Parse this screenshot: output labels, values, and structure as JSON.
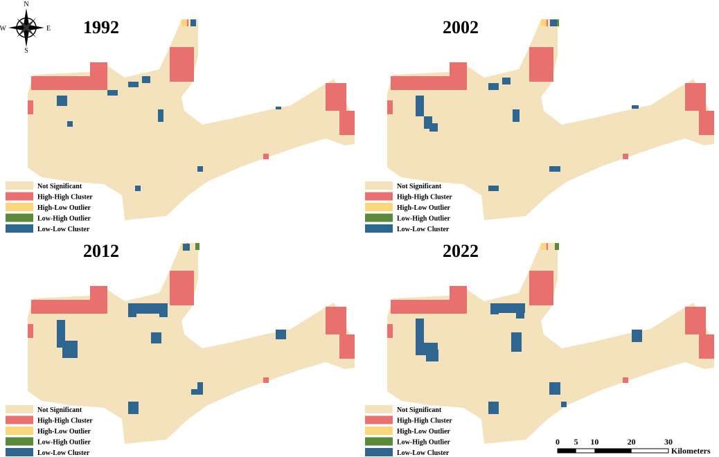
{
  "compass": {
    "north": "N",
    "south": "S",
    "east": "E",
    "west": "W"
  },
  "panels": [
    {
      "year": "1992"
    },
    {
      "year": "2002"
    },
    {
      "year": "2012"
    },
    {
      "year": "2022"
    }
  ],
  "legend": [
    {
      "label": "Not Significant",
      "color": "#f4e2bd"
    },
    {
      "label": "High-High Cluster",
      "color": "#e8706f"
    },
    {
      "label": "High-Low Outlier",
      "color": "#fbd67a"
    },
    {
      "label": "Low-High Outlier",
      "color": "#5b8a3c"
    },
    {
      "label": "Low-Low Cluster",
      "color": "#2f6690"
    }
  ],
  "scale_bar": {
    "ticks": [
      "0",
      "5",
      "10",
      "20",
      "30"
    ],
    "unit": "Kilometers"
  }
}
